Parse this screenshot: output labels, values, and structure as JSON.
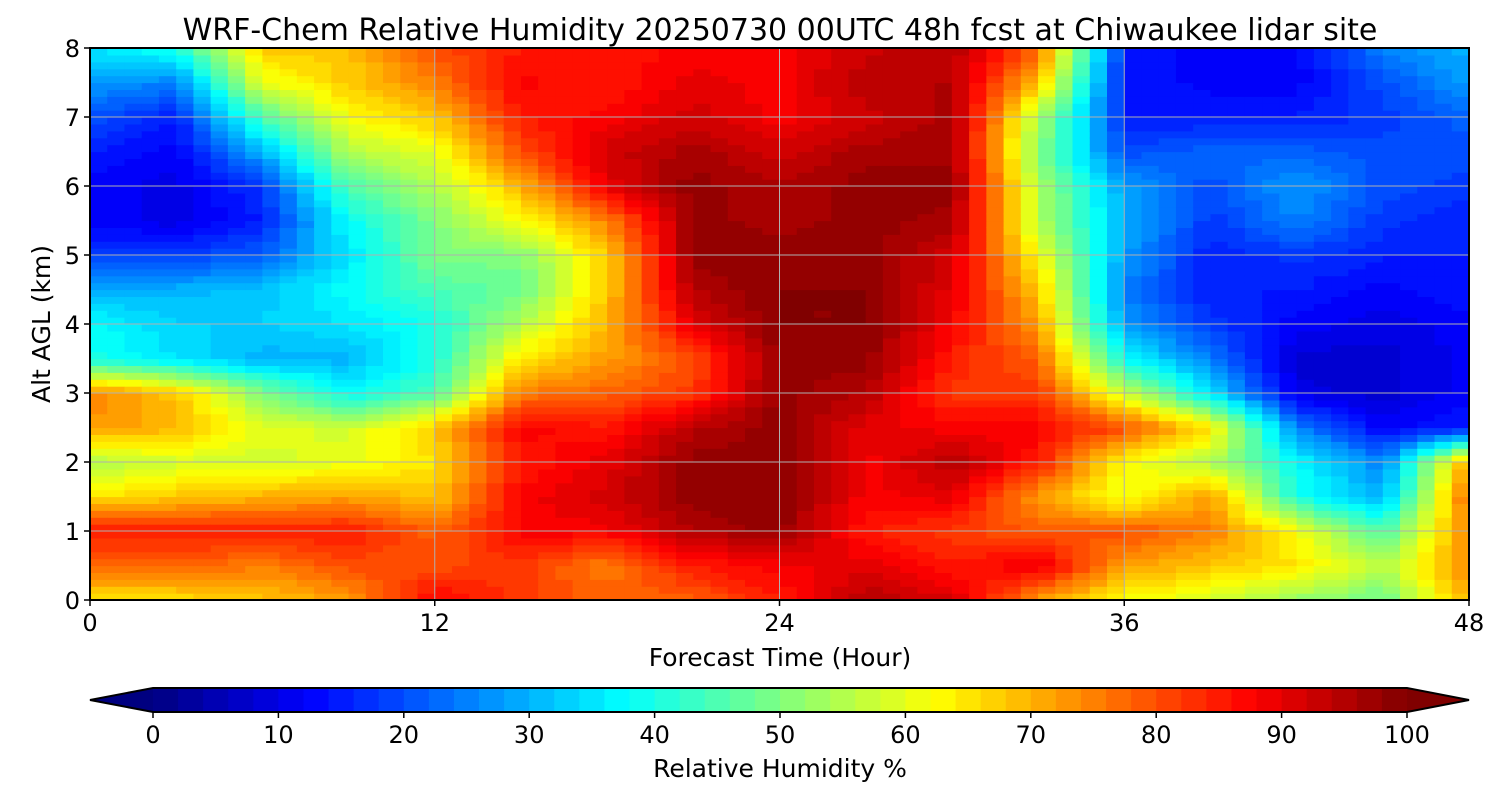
{
  "chart_data": {
    "type": "heatmap",
    "title": "WRF-Chem Relative Humidity 20250730 00UTC 48h fcst at Chiwaukee lidar site",
    "xlabel": "Forecast Time (Hour)",
    "ylabel": "Alt AGL (km)",
    "xlim": [
      0,
      48
    ],
    "ylim": [
      0,
      8
    ],
    "grid": true,
    "x_ticks": [
      "0",
      "12",
      "24",
      "36",
      "48"
    ],
    "y_ticks": [
      "0",
      "1",
      "2",
      "3",
      "4",
      "5",
      "6",
      "7",
      "8"
    ],
    "x": [
      0,
      3,
      6,
      9,
      12,
      15,
      18,
      21,
      24,
      27,
      30,
      33,
      36,
      39,
      42,
      45,
      48
    ],
    "y": [
      0,
      0.5,
      1,
      1.5,
      2,
      2.5,
      3,
      3.5,
      4,
      4.5,
      5,
      5.5,
      6,
      6.5,
      7,
      7.5,
      8
    ],
    "values_by_time": [
      [
        65,
        78,
        85,
        65,
        55,
        72,
        75,
        40,
        38,
        30,
        18,
        12,
        12,
        15,
        20,
        28,
        35
      ],
      [
        65,
        78,
        85,
        68,
        58,
        70,
        68,
        35,
        33,
        30,
        18,
        10,
        10,
        12,
        15,
        25,
        40
      ],
      [
        68,
        75,
        85,
        70,
        58,
        60,
        50,
        30,
        33,
        32,
        22,
        15,
        18,
        30,
        45,
        60,
        68
      ],
      [
        72,
        80,
        85,
        72,
        60,
        58,
        38,
        30,
        35,
        38,
        35,
        38,
        45,
        55,
        62,
        68,
        68
      ],
      [
        88,
        80,
        78,
        68,
        65,
        68,
        45,
        40,
        40,
        45,
        50,
        50,
        55,
        60,
        68,
        75,
        80
      ],
      [
        82,
        82,
        88,
        88,
        85,
        88,
        75,
        65,
        55,
        48,
        50,
        62,
        70,
        80,
        85,
        88,
        85
      ],
      [
        78,
        75,
        88,
        92,
        90,
        85,
        78,
        72,
        70,
        68,
        68,
        75,
        90,
        92,
        88,
        85,
        85
      ],
      [
        78,
        85,
        95,
        98,
        98,
        95,
        82,
        80,
        90,
        95,
        98,
        98,
        98,
        96,
        92,
        90,
        88
      ],
      [
        85,
        88,
        98,
        99,
        98,
        98,
        98,
        98,
        99,
        99,
        98,
        96,
        95,
        92,
        88,
        88,
        88
      ],
      [
        95,
        90,
        85,
        88,
        88,
        90,
        95,
        98,
        99,
        99,
        98,
        98,
        98,
        96,
        92,
        95,
        92
      ],
      [
        92,
        85,
        82,
        90,
        95,
        88,
        82,
        85,
        88,
        90,
        92,
        96,
        98,
        96,
        96,
        95,
        95
      ],
      [
        72,
        90,
        78,
        72,
        85,
        88,
        82,
        78,
        72,
        68,
        62,
        55,
        55,
        50,
        55,
        68,
        78
      ],
      [
        62,
        72,
        80,
        60,
        62,
        80,
        58,
        38,
        28,
        25,
        28,
        30,
        28,
        20,
        15,
        15,
        15
      ],
      [
        58,
        68,
        75,
        72,
        55,
        65,
        35,
        25,
        18,
        15,
        15,
        18,
        20,
        22,
        15,
        12,
        12
      ],
      [
        52,
        65,
        62,
        40,
        38,
        25,
        10,
        8,
        12,
        15,
        18,
        25,
        28,
        22,
        15,
        12,
        12
      ],
      [
        48,
        55,
        45,
        30,
        25,
        12,
        8,
        8,
        10,
        12,
        15,
        18,
        20,
        20,
        18,
        20,
        25
      ],
      [
        70,
        75,
        75,
        78,
        72,
        15,
        12,
        12,
        12,
        15,
        15,
        15,
        18,
        20,
        22,
        28,
        30
      ]
    ],
    "colorbar": {
      "label": "Relative Humidity %",
      "range": [
        0,
        100
      ],
      "ticks": [
        "0",
        "10",
        "20",
        "30",
        "40",
        "50",
        "60",
        "70",
        "80",
        "90",
        "100"
      ],
      "colormap": "jet",
      "extend": "both"
    }
  }
}
